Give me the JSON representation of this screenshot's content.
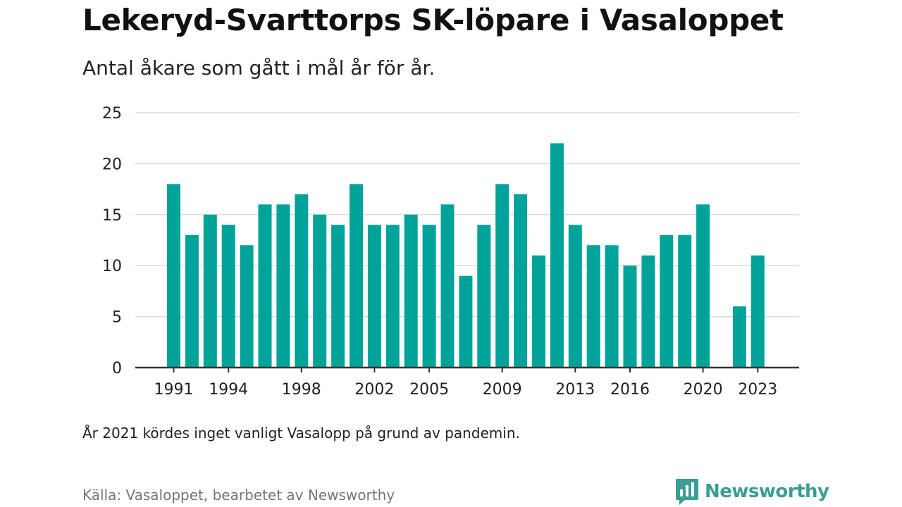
{
  "header": {
    "title": "Lekeryd-Svarttorps SK-löpare i Vasaloppet",
    "subtitle": "Antal åkare som gått i mål år för år."
  },
  "footer": {
    "note": "År 2021 kördes inget vanligt Vasalopp på grund av pandemin.",
    "source": "Källa: Vasaloppet, bearbetet av Newsworthy",
    "brand": "Newsworthy",
    "brand_icon": "newsworthy-logo-icon"
  },
  "colors": {
    "bar": "#00a39a",
    "grid": "#dcdcdc",
    "axis": "#333333",
    "brand": "#3a9e95"
  },
  "chart_data": {
    "type": "bar",
    "x": [
      1991,
      1992,
      1993,
      1994,
      1995,
      1996,
      1997,
      1998,
      1999,
      2000,
      2001,
      2002,
      2003,
      2004,
      2005,
      2006,
      2007,
      2008,
      2009,
      2010,
      2011,
      2012,
      2013,
      2014,
      2015,
      2016,
      2017,
      2018,
      2019,
      2020,
      2021,
      2022,
      2023
    ],
    "values": [
      18,
      13,
      15,
      14,
      12,
      16,
      16,
      17,
      15,
      14,
      18,
      14,
      14,
      15,
      14,
      16,
      9,
      14,
      18,
      17,
      11,
      22,
      14,
      12,
      12,
      10,
      11,
      13,
      13,
      16,
      null,
      6,
      11
    ],
    "x_ticks": [
      1991,
      1994,
      1998,
      2002,
      2005,
      2009,
      2013,
      2016,
      2020,
      2023
    ],
    "y_ticks": [
      0,
      5,
      10,
      15,
      20,
      25
    ],
    "ylim": [
      0,
      25
    ],
    "grid": true,
    "legend": "none"
  }
}
